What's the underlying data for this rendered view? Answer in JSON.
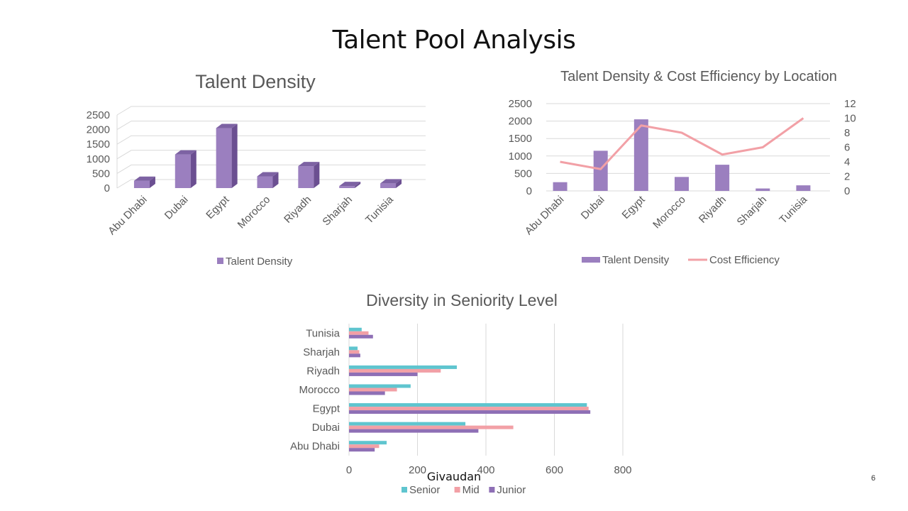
{
  "slide": {
    "title": "Talent Pool Analysis",
    "brand": "Givaudan",
    "page_number": "6"
  },
  "chart_data": [
    {
      "type": "bar",
      "title": "Talent Density",
      "categories": [
        "Abu Dhabi",
        "Dubai",
        "Egypt",
        "Morocco",
        "Riyadh",
        "Sharjah",
        "Tunisia"
      ],
      "series": [
        {
          "name": "Talent Density",
          "values": [
            250,
            1150,
            2050,
            400,
            750,
            70,
            160
          ]
        }
      ],
      "ylim": [
        0,
        2500
      ],
      "yticks": [
        0,
        500,
        1000,
        1500,
        2000,
        2500
      ],
      "legend_position": "bottom",
      "grid": true,
      "style": "3d",
      "colors": {
        "bar": "#9b7fbf",
        "bar_side": "#6b4f91",
        "bar_top": "#7d62a3"
      }
    },
    {
      "type": "bar",
      "title": "Talent Density & Cost Efficiency by Location",
      "categories": [
        "Abu Dhabi",
        "Dubai",
        "Egypt",
        "Morocco",
        "Riyadh",
        "Sharjah",
        "Tunisia"
      ],
      "series": [
        {
          "name": "Talent Density",
          "type": "bar",
          "axis": "left",
          "values": [
            250,
            1150,
            2050,
            400,
            750,
            70,
            160
          ]
        },
        {
          "name": "Cost Efficiency",
          "type": "line",
          "axis": "right",
          "values": [
            4,
            3,
            9,
            8,
            5,
            6,
            10
          ]
        }
      ],
      "ylim": [
        0,
        2500
      ],
      "yticks": [
        0,
        500,
        1000,
        1500,
        2000,
        2500
      ],
      "y2lim": [
        0,
        12
      ],
      "y2ticks": [
        0,
        2,
        4,
        6,
        8,
        10,
        12
      ],
      "legend_position": "bottom",
      "grid": true,
      "colors": {
        "bar": "#9b7fbf",
        "line": "#f2a0a6"
      }
    },
    {
      "type": "bar",
      "orientation": "horizontal",
      "title": "Diversity in Seniority Level",
      "categories": [
        "Abu Dhabi",
        "Dubai",
        "Egypt",
        "Morocco",
        "Riyadh",
        "Sharjah",
        "Tunisia"
      ],
      "series": [
        {
          "name": "Senior",
          "values": [
            110,
            340,
            695,
            180,
            315,
            25,
            37
          ]
        },
        {
          "name": "Mid",
          "values": [
            88,
            480,
            700,
            140,
            268,
            30,
            57
          ]
        },
        {
          "name": "Junior",
          "values": [
            75,
            378,
            705,
            105,
            200,
            33,
            70
          ]
        }
      ],
      "xlim": [
        0,
        800
      ],
      "xticks": [
        0,
        200,
        400,
        600,
        800
      ],
      "legend_position": "bottom",
      "grid": true,
      "colors": {
        "Senior": "#5fc5cf",
        "Mid": "#f2a0a6",
        "Junior": "#8e6fb5"
      }
    }
  ]
}
